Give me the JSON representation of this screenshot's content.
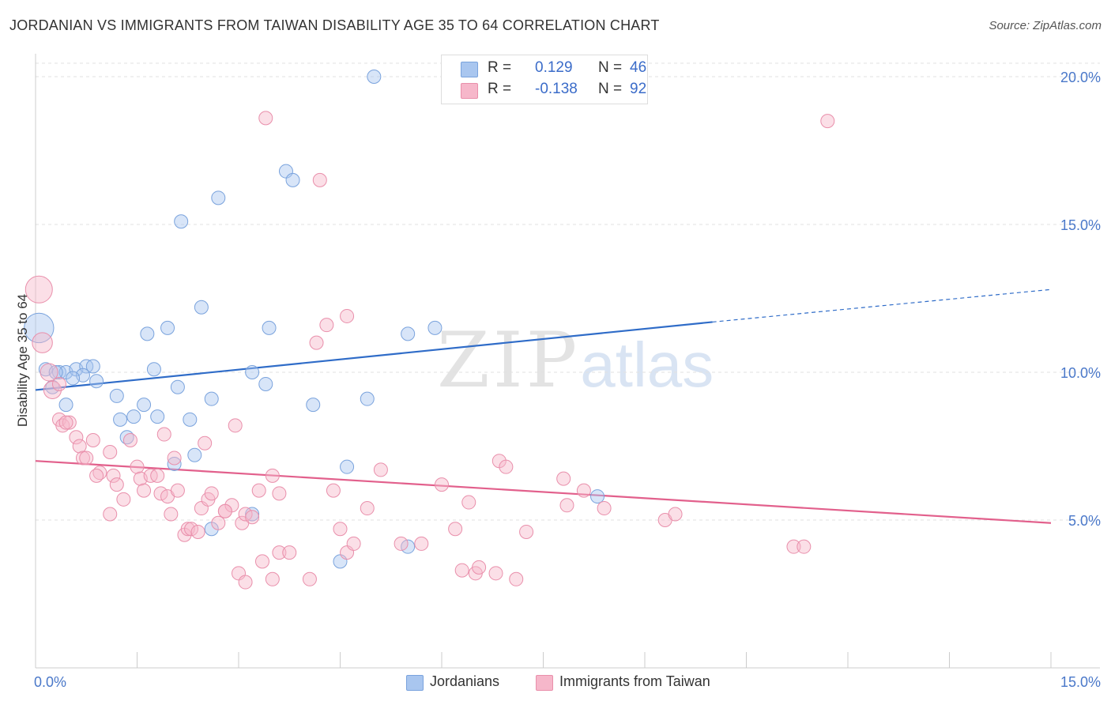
{
  "title": "JORDANIAN VS IMMIGRANTS FROM TAIWAN DISABILITY AGE 35 TO 64 CORRELATION CHART",
  "source": "Source: ZipAtlas.com",
  "watermark": {
    "zip": "ZIP",
    "atlas": "atlas"
  },
  "stats": [
    {
      "r_label": "R =",
      "r_value": "0.129",
      "n_label": "N =",
      "n_value": "46",
      "color": "#a9c6ef"
    },
    {
      "r_label": "R =",
      "r_value": "-0.138",
      "n_label": "N =",
      "n_value": "92",
      "color": "#f6b7ca"
    }
  ],
  "legend": [
    {
      "label": "Jordanians",
      "color": "#a9c6ef"
    },
    {
      "label": "Immigrants from Taiwan",
      "color": "#f6b7ca"
    }
  ],
  "chart_data": {
    "type": "scatter",
    "title": "JORDANIAN VS IMMIGRANTS FROM TAIWAN DISABILITY AGE 35 TO 64 CORRELATION CHART",
    "xlabel": "",
    "ylabel": "Disability Age 35 to 64",
    "xlim": [
      0,
      15
    ],
    "ylim": [
      0,
      20
    ],
    "x_ticks": [
      {
        "value": 0,
        "label": "0.0%"
      },
      {
        "value": 15,
        "label": "15.0%"
      }
    ],
    "y_ticks": [
      {
        "value": 5,
        "label": "5.0%"
      },
      {
        "value": 10,
        "label": "10.0%"
      },
      {
        "value": 15,
        "label": "15.0%"
      },
      {
        "value": 20,
        "label": "20.0%"
      }
    ],
    "grid": true,
    "legend_position": "bottom",
    "series": [
      {
        "name": "Jordanians",
        "color": "#a9c6ef",
        "stroke": "#7aa3dd",
        "trend": {
          "x": [
            0,
            10.0
          ],
          "y": [
            9.4,
            11.7
          ],
          "dashed_to": [
            15,
            12.8
          ],
          "color": "#2f6cc8"
        },
        "points": [
          [
            0.05,
            11.5,
            2.2
          ],
          [
            0.15,
            10.1,
            1
          ],
          [
            0.35,
            10.0,
            1
          ],
          [
            0.45,
            10.0,
            1
          ],
          [
            0.6,
            10.1,
            1
          ],
          [
            0.75,
            10.2,
            1
          ],
          [
            0.85,
            10.2,
            1
          ],
          [
            0.7,
            9.9,
            1
          ],
          [
            0.55,
            9.8,
            1
          ],
          [
            0.9,
            9.7,
            1
          ],
          [
            0.25,
            9.5,
            1
          ],
          [
            0.45,
            8.9,
            1
          ],
          [
            1.2,
            9.2,
            1
          ],
          [
            1.25,
            8.4,
            1
          ],
          [
            1.45,
            8.5,
            1
          ],
          [
            1.35,
            7.8,
            1
          ],
          [
            1.6,
            8.9,
            1
          ],
          [
            1.8,
            8.5,
            1
          ],
          [
            1.75,
            10.1,
            1
          ],
          [
            2.1,
            9.5,
            1
          ],
          [
            2.28,
            8.4,
            1
          ],
          [
            2.6,
            9.1,
            1
          ],
          [
            1.65,
            11.3,
            1
          ],
          [
            1.95,
            11.5,
            1
          ],
          [
            2.45,
            12.2,
            1
          ],
          [
            2.05,
            6.9,
            1
          ],
          [
            2.35,
            7.2,
            1
          ],
          [
            2.6,
            4.7,
            1
          ],
          [
            3.2,
            5.2,
            1
          ],
          [
            3.2,
            10.0,
            1
          ],
          [
            3.4,
            9.6,
            1
          ],
          [
            3.45,
            11.5,
            1
          ],
          [
            4.1,
            8.9,
            1
          ],
          [
            4.6,
            6.8,
            1
          ],
          [
            4.9,
            9.1,
            1
          ],
          [
            5.5,
            11.3,
            1
          ],
          [
            5.9,
            11.5,
            1
          ],
          [
            5.5,
            4.1,
            1
          ],
          [
            4.5,
            3.6,
            1
          ],
          [
            8.3,
            5.8,
            1
          ],
          [
            2.15,
            15.1,
            1
          ],
          [
            2.7,
            15.9,
            1
          ],
          [
            3.7,
            16.8,
            1
          ],
          [
            3.8,
            16.5,
            1
          ],
          [
            5.0,
            20.0,
            1
          ],
          [
            0.3,
            10.0,
            1
          ]
        ]
      },
      {
        "name": "Immigrants from Taiwan",
        "color": "#f6b7ca",
        "stroke": "#e98fab",
        "trend": {
          "x": [
            0,
            15
          ],
          "y": [
            7.0,
            4.9
          ],
          "color": "#e2608c"
        },
        "points": [
          [
            0.05,
            12.8,
            2
          ],
          [
            0.1,
            11.0,
            1.5
          ],
          [
            0.2,
            10.0,
            1.3
          ],
          [
            0.25,
            9.4,
            1.3
          ],
          [
            0.35,
            9.6,
            1
          ],
          [
            0.35,
            8.4,
            1
          ],
          [
            0.4,
            8.2,
            1
          ],
          [
            0.5,
            8.3,
            1
          ],
          [
            0.45,
            8.3,
            1
          ],
          [
            0.6,
            7.8,
            1
          ],
          [
            0.65,
            7.5,
            1
          ],
          [
            0.7,
            7.1,
            1
          ],
          [
            0.75,
            7.1,
            1
          ],
          [
            0.85,
            7.7,
            1
          ],
          [
            0.95,
            6.6,
            1
          ],
          [
            0.9,
            6.5,
            1
          ],
          [
            1.1,
            7.3,
            1
          ],
          [
            1.15,
            6.5,
            1
          ],
          [
            1.2,
            6.2,
            1
          ],
          [
            1.3,
            5.7,
            1
          ],
          [
            1.4,
            7.7,
            1
          ],
          [
            1.5,
            6.8,
            1
          ],
          [
            1.55,
            6.4,
            1
          ],
          [
            1.6,
            6.0,
            1
          ],
          [
            1.7,
            6.5,
            1
          ],
          [
            1.8,
            6.5,
            1
          ],
          [
            1.85,
            5.9,
            1
          ],
          [
            1.9,
            7.9,
            1
          ],
          [
            1.95,
            5.8,
            1
          ],
          [
            2.0,
            5.2,
            1
          ],
          [
            2.05,
            7.1,
            1
          ],
          [
            2.1,
            6.0,
            1
          ],
          [
            2.2,
            4.5,
            1
          ],
          [
            2.25,
            4.7,
            1
          ],
          [
            2.3,
            4.7,
            1
          ],
          [
            2.4,
            4.6,
            1
          ],
          [
            2.45,
            5.4,
            1
          ],
          [
            2.5,
            7.6,
            1
          ],
          [
            2.55,
            5.7,
            1
          ],
          [
            2.6,
            5.9,
            1
          ],
          [
            2.7,
            4.9,
            1
          ],
          [
            2.8,
            5.3,
            1
          ],
          [
            2.9,
            5.5,
            1
          ],
          [
            2.95,
            8.2,
            1
          ],
          [
            3.05,
            4.9,
            1
          ],
          [
            3.1,
            5.2,
            1
          ],
          [
            3.2,
            5.1,
            1
          ],
          [
            3.3,
            6.0,
            1
          ],
          [
            3.5,
            6.5,
            1
          ],
          [
            3.6,
            5.9,
            1
          ],
          [
            3.0,
            3.2,
            1
          ],
          [
            3.1,
            2.9,
            1
          ],
          [
            3.35,
            3.6,
            1
          ],
          [
            3.5,
            3.0,
            1
          ],
          [
            3.6,
            3.9,
            1
          ],
          [
            3.75,
            3.9,
            1
          ],
          [
            4.05,
            3.0,
            1
          ],
          [
            4.15,
            11.0,
            1
          ],
          [
            4.3,
            11.6,
            1
          ],
          [
            4.6,
            11.9,
            1
          ],
          [
            4.4,
            6.0,
            1
          ],
          [
            4.5,
            4.7,
            1
          ],
          [
            4.6,
            3.9,
            1
          ],
          [
            4.7,
            4.2,
            1
          ],
          [
            4.9,
            5.4,
            1
          ],
          [
            5.1,
            6.7,
            1
          ],
          [
            5.4,
            4.2,
            1
          ],
          [
            5.7,
            4.2,
            1
          ],
          [
            6.0,
            6.2,
            1
          ],
          [
            6.2,
            4.7,
            1
          ],
          [
            6.4,
            5.6,
            1
          ],
          [
            6.3,
            3.3,
            1
          ],
          [
            6.5,
            3.2,
            1
          ],
          [
            6.55,
            3.4,
            1
          ],
          [
            6.8,
            3.2,
            1
          ],
          [
            6.85,
            7.0,
            1
          ],
          [
            6.95,
            6.8,
            1
          ],
          [
            7.1,
            3.0,
            1
          ],
          [
            7.25,
            4.6,
            1
          ],
          [
            7.8,
            6.4,
            1
          ],
          [
            7.85,
            5.5,
            1
          ],
          [
            8.1,
            6.0,
            1
          ],
          [
            8.4,
            5.4,
            1
          ],
          [
            9.3,
            5.0,
            1
          ],
          [
            9.45,
            5.2,
            1
          ],
          [
            11.2,
            4.1,
            1
          ],
          [
            11.35,
            4.1,
            1
          ],
          [
            4.2,
            16.5,
            1
          ],
          [
            3.4,
            18.6,
            1
          ],
          [
            11.7,
            18.5,
            1
          ],
          [
            2.8,
            5.3,
            1
          ],
          [
            1.1,
            5.2,
            1
          ]
        ]
      }
    ]
  }
}
